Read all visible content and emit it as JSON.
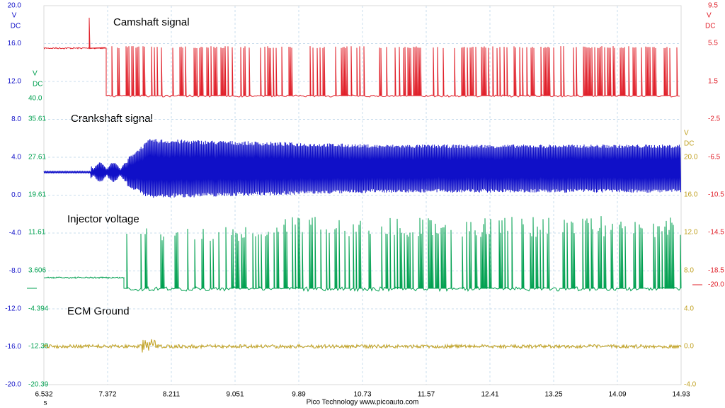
{
  "channels": [
    {
      "name": "Camshaft signal",
      "unit": "V",
      "unit2": "DC",
      "ticks": [
        "9.5",
        "5.5",
        "1.5",
        "-2.5",
        "-6.5",
        "-10.5",
        "-14.5",
        "-18.5",
        "-20.0"
      ]
    },
    {
      "name": "Crankshaft signal",
      "unit": "V",
      "unit2": "DC",
      "ticks": [
        "20.0",
        "16.0",
        "12.0",
        "8.0",
        "4.0",
        "0.0",
        "-4.0",
        "-8.0",
        "-12.0",
        "-16.0",
        "-20.0"
      ]
    },
    {
      "name": "Injector voltage",
      "unit": "V",
      "unit2": "DC",
      "ticks": [
        "40.0",
        "35.61",
        "27.61",
        "19.61",
        "11.61",
        "3.606",
        "-4.394",
        "-12.39",
        "-20.39"
      ]
    },
    {
      "name": "ECM Ground",
      "unit": "V",
      "unit2": "DC",
      "ticks": [
        "20.0",
        "16.0",
        "12.0",
        "8.0",
        "4.0",
        "0.0",
        "-4.0"
      ]
    }
  ],
  "time_axis": {
    "unit": "s",
    "ticks": [
      "6.532",
      "7.372",
      "8.211",
      "9.051",
      "9.89",
      "10.73",
      "11.57",
      "12.41",
      "13.25",
      "14.09",
      "14.93"
    ]
  },
  "footer": "Pico Technology   www.picoauto.com"
}
